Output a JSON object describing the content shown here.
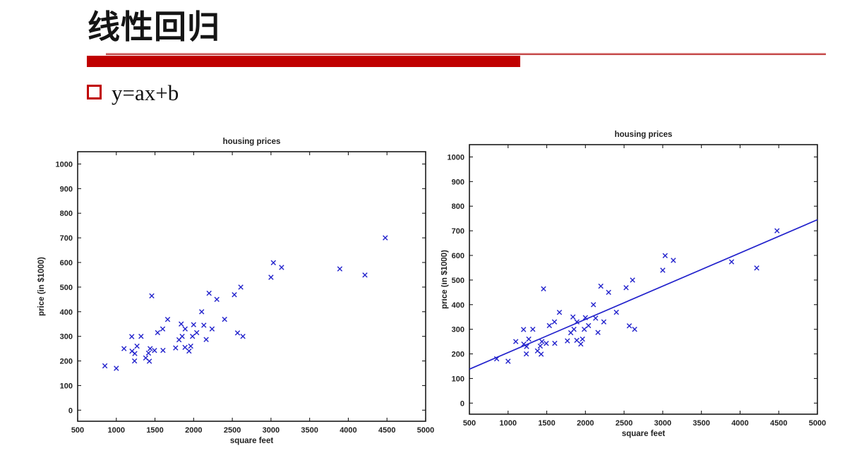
{
  "slide": {
    "title": "线性回归",
    "bullet": "y=ax+b",
    "accent_color": "#c00000"
  },
  "chart_data": [
    {
      "type": "scatter",
      "title": "housing prices",
      "xlabel": "square feet",
      "ylabel": "price (in $1000)",
      "xlim": [
        500,
        5000
      ],
      "ylim": [
        -45,
        1050
      ],
      "xticks": [
        500,
        1000,
        1500,
        2000,
        2500,
        3000,
        3500,
        4000,
        4500,
        5000
      ],
      "yticks": [
        0,
        100,
        200,
        300,
        400,
        500,
        600,
        700,
        800,
        900,
        1000
      ],
      "grid": false,
      "legend": "none",
      "marker": "x",
      "marker_color": "#2222cc",
      "axis_color": "#1a1a1a",
      "points": [
        [
          2104,
          399.9
        ],
        [
          1600,
          329.9
        ],
        [
          2400,
          369
        ],
        [
          1416,
          232
        ],
        [
          3000,
          539.9
        ],
        [
          1985,
          299.9
        ],
        [
          1534,
          314.9
        ],
        [
          1427,
          199
        ],
        [
          1380,
          212
        ],
        [
          1494,
          242.5
        ],
        [
          1940,
          240
        ],
        [
          2000,
          347
        ],
        [
          1890,
          330
        ],
        [
          4478,
          699.9
        ],
        [
          1268,
          259.9
        ],
        [
          2300,
          449.9
        ],
        [
          1320,
          299.9
        ],
        [
          1236,
          199.9
        ],
        [
          2609,
          500
        ],
        [
          3031,
          599
        ],
        [
          1767,
          252.9
        ],
        [
          1888,
          255
        ],
        [
          1604,
          242.9
        ],
        [
          1962,
          259.9
        ],
        [
          3890,
          573.9
        ],
        [
          1100,
          249.9
        ],
        [
          1458,
          464.5
        ],
        [
          2526,
          469
        ],
        [
          2200,
          475
        ],
        [
          2637,
          299.9
        ],
        [
          1839,
          349.9
        ],
        [
          1000,
          169.9
        ],
        [
          2040,
          314.9
        ],
        [
          3137,
          579.9
        ],
        [
          1811,
          285.9
        ],
        [
          1437,
          249.9
        ],
        [
          1239,
          229.9
        ],
        [
          2132,
          345
        ],
        [
          4215,
          549
        ],
        [
          2162,
          287
        ],
        [
          1664,
          368.5
        ],
        [
          2238,
          329.9
        ],
        [
          2567,
          314
        ],
        [
          1200,
          299
        ],
        [
          852,
          179.9
        ],
        [
          1852,
          299.9
        ],
        [
          1203,
          239.5
        ]
      ]
    },
    {
      "type": "scatter",
      "title": "housing prices",
      "xlabel": "square feet",
      "ylabel": "price (in $1000)",
      "xlim": [
        500,
        5000
      ],
      "ylim": [
        -45,
        1050
      ],
      "xticks": [
        500,
        1000,
        1500,
        2000,
        2500,
        3000,
        3500,
        4000,
        4500,
        5000
      ],
      "yticks": [
        0,
        100,
        200,
        300,
        400,
        500,
        600,
        700,
        800,
        900,
        1000
      ],
      "grid": false,
      "legend": "none",
      "marker": "x",
      "marker_color": "#2222cc",
      "axis_color": "#1a1a1a",
      "points": [
        [
          2104,
          399.9
        ],
        [
          1600,
          329.9
        ],
        [
          2400,
          369
        ],
        [
          1416,
          232
        ],
        [
          3000,
          539.9
        ],
        [
          1985,
          299.9
        ],
        [
          1534,
          314.9
        ],
        [
          1427,
          199
        ],
        [
          1380,
          212
        ],
        [
          1494,
          242.5
        ],
        [
          1940,
          240
        ],
        [
          2000,
          347
        ],
        [
          1890,
          330
        ],
        [
          4478,
          699.9
        ],
        [
          1268,
          259.9
        ],
        [
          2300,
          449.9
        ],
        [
          1320,
          299.9
        ],
        [
          1236,
          199.9
        ],
        [
          2609,
          500
        ],
        [
          3031,
          599
        ],
        [
          1767,
          252.9
        ],
        [
          1888,
          255
        ],
        [
          1604,
          242.9
        ],
        [
          1962,
          259.9
        ],
        [
          3890,
          573.9
        ],
        [
          1100,
          249.9
        ],
        [
          1458,
          464.5
        ],
        [
          2526,
          469
        ],
        [
          2200,
          475
        ],
        [
          2637,
          299.9
        ],
        [
          1839,
          349.9
        ],
        [
          1000,
          169.9
        ],
        [
          2040,
          314.9
        ],
        [
          3137,
          579.9
        ],
        [
          1811,
          285.9
        ],
        [
          1437,
          249.9
        ],
        [
          1239,
          229.9
        ],
        [
          2132,
          345
        ],
        [
          4215,
          549
        ],
        [
          2162,
          287
        ],
        [
          1664,
          368.5
        ],
        [
          2238,
          329.9
        ],
        [
          2567,
          314
        ],
        [
          1200,
          299
        ],
        [
          852,
          179.9
        ],
        [
          1852,
          299.9
        ],
        [
          1203,
          239.5
        ]
      ],
      "fit_line": {
        "x": [
          500,
          5000
        ],
        "y": [
          138,
          745
        ],
        "color": "#2222cc"
      }
    }
  ]
}
